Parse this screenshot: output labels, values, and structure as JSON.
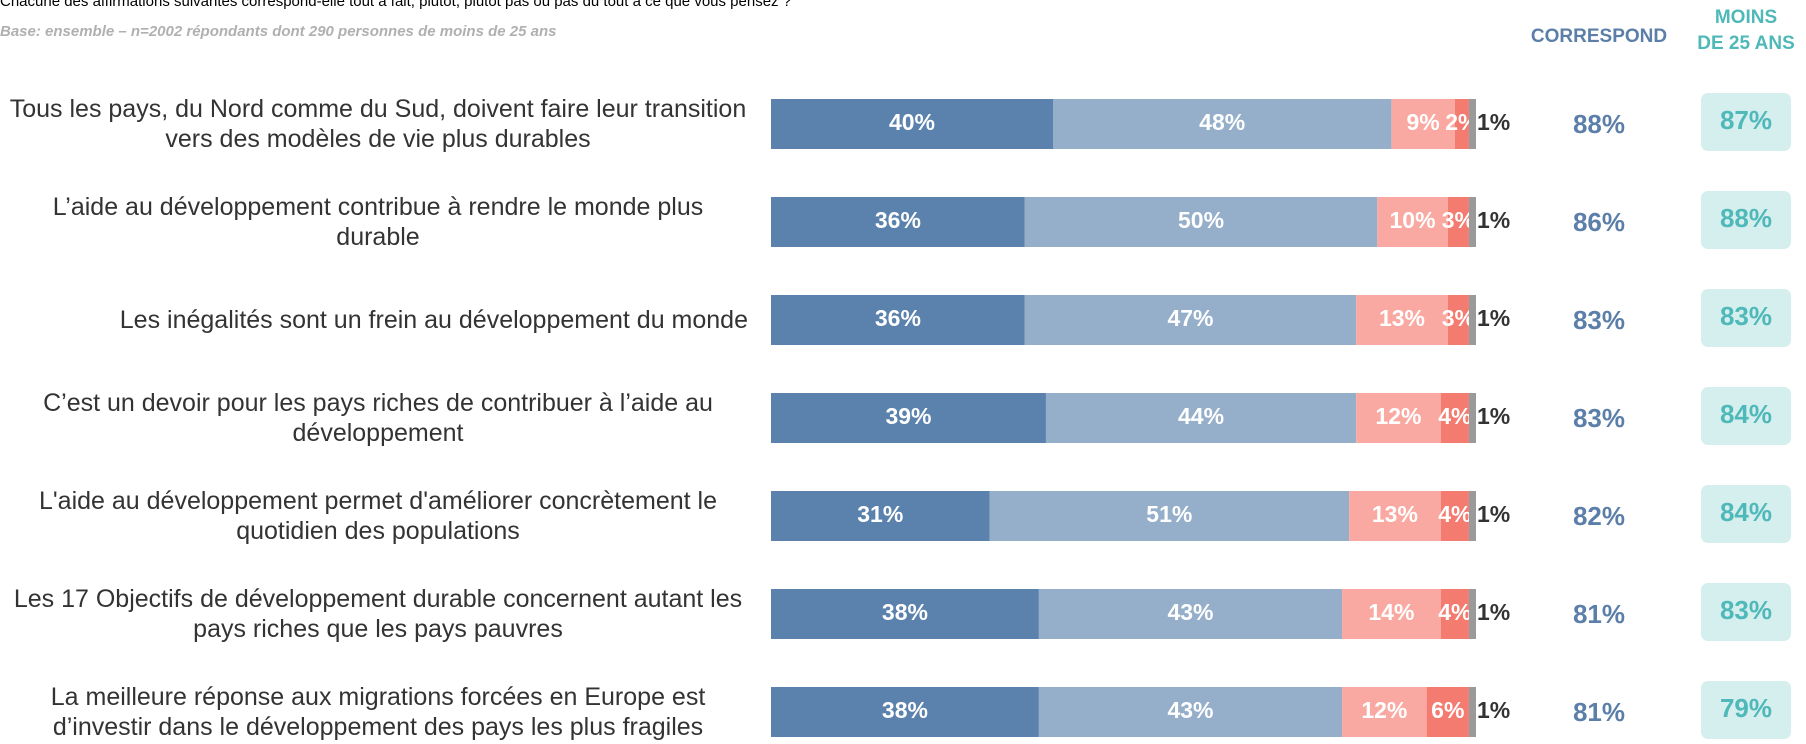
{
  "chart_data": {
    "type": "stacked-bar",
    "orientation": "horizontal",
    "question": "Chacune des affirmations suivantes correspond-elle tout à fait, plutôt, plutôt pas ou pas du tout à ce que vous pensez ?",
    "base": "Base: ensemble – n=2002 répondants dont 290 personnes de moins de 25 ans",
    "xlim": [
      0,
      100
    ],
    "categories": [
      "Tous les pays, du Nord comme du Sud, doivent faire leur transition vers des modèles de vie plus durables",
      "L’aide au développement contribue à rendre le monde plus durable",
      "Les inégalités sont un frein au développement du monde",
      "C’est un devoir pour les pays riches de contribuer à l’aide au développement",
      "L'aide au développement permet d'améliorer concrètement le quotidien des populations",
      "Les 17 Objectifs de développement durable concernent autant les pays riches que les pays pauvres",
      "La meilleure réponse aux migrations forcées en Europe est d’investir dans le développement des pays les plus fragiles"
    ],
    "series": [
      {
        "color": "#5b82ad",
        "values": [
          40,
          36,
          36,
          39,
          31,
          38,
          38
        ],
        "value_labels": [
          "40%",
          "36%",
          "36%",
          "39%",
          "31%",
          "38%",
          "38%"
        ]
      },
      {
        "color": "#95afca",
        "values": [
          48,
          50,
          47,
          44,
          51,
          43,
          43
        ],
        "value_labels": [
          "48%",
          "50%",
          "47%",
          "44%",
          "51%",
          "43%",
          "43%"
        ]
      },
      {
        "color": "#f9a9a1",
        "values": [
          9,
          10,
          13,
          12,
          13,
          14,
          12
        ],
        "value_labels": [
          "9%",
          "10%",
          "13%",
          "12%",
          "13%",
          "14%",
          "12%"
        ]
      },
      {
        "color": "#f47b70",
        "values": [
          2,
          3,
          3,
          4,
          4,
          4,
          6
        ],
        "value_labels": [
          "2%",
          "3%",
          "3%",
          "4%",
          "4%",
          "4%",
          "6%"
        ]
      },
      {
        "color": "#9a9a9a",
        "values": [
          1,
          1,
          1,
          1,
          1,
          1,
          1
        ],
        "value_labels": [
          "1%",
          "1%",
          "1%",
          "1%",
          "1%",
          "1%",
          "1%"
        ]
      }
    ],
    "columns": [
      {
        "title": [
          "CORRESPOND"
        ],
        "color": "#5b7fa8",
        "values": [
          88,
          86,
          83,
          83,
          82,
          81,
          81
        ],
        "value_labels": [
          "88%",
          "86%",
          "83%",
          "83%",
          "82%",
          "81%",
          "81%"
        ]
      },
      {
        "title": [
          "MOINS",
          "DE 25 ANS"
        ],
        "color": "#4fb8b8",
        "box_color": "#d5eeee",
        "values": [
          87,
          88,
          83,
          84,
          84,
          83,
          79
        ],
        "value_labels": [
          "87%",
          "88%",
          "83%",
          "84%",
          "84%",
          "83%",
          "79%"
        ]
      }
    ]
  }
}
